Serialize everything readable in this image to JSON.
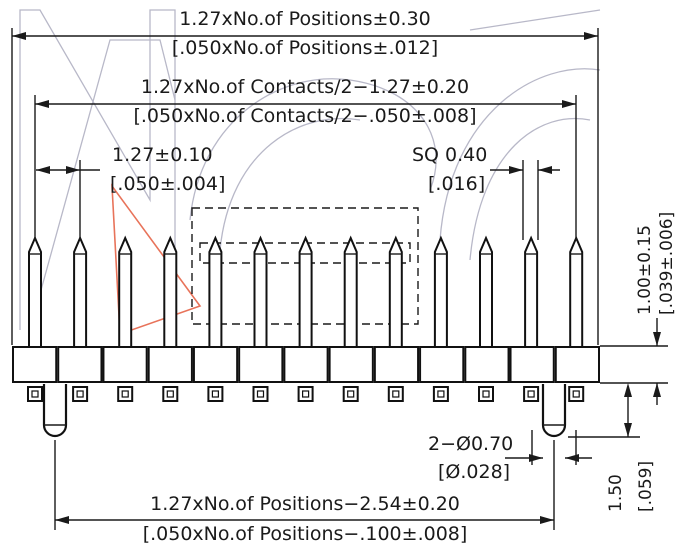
{
  "dimensions": {
    "overall_length": "1.27xNo.of Positions±0.30",
    "overall_length_inch": "[.050xNo.of Positions±.012]",
    "contacts_span": "1.27xNo.of Contacts/2−1.27±0.20",
    "contacts_span_inch": "[.050xNo.of Contacts/2−.050±.008]",
    "pitch": "1.27±0.10",
    "pitch_inch": "[.050±.004]",
    "pin_square": "SQ 0.40",
    "pin_square_inch": "[.016]",
    "insulator_height": "1.00±0.15",
    "insulator_height_inch": "[.039±.006]",
    "post_diameter": "2−Ø0.70",
    "post_diameter_inch": "[Ø.028]",
    "post_length": "1.50",
    "post_length_inch": "[.059]",
    "post_span": "1.27xNo.of Positions−2.54±0.20",
    "post_span_inch": "[.050xNo.of Positions−.100±.008]"
  },
  "colors": {
    "line": "#1a1a1a",
    "watermark": "#b8b8c8",
    "accent": "#e8735a"
  },
  "pin_count": 13
}
